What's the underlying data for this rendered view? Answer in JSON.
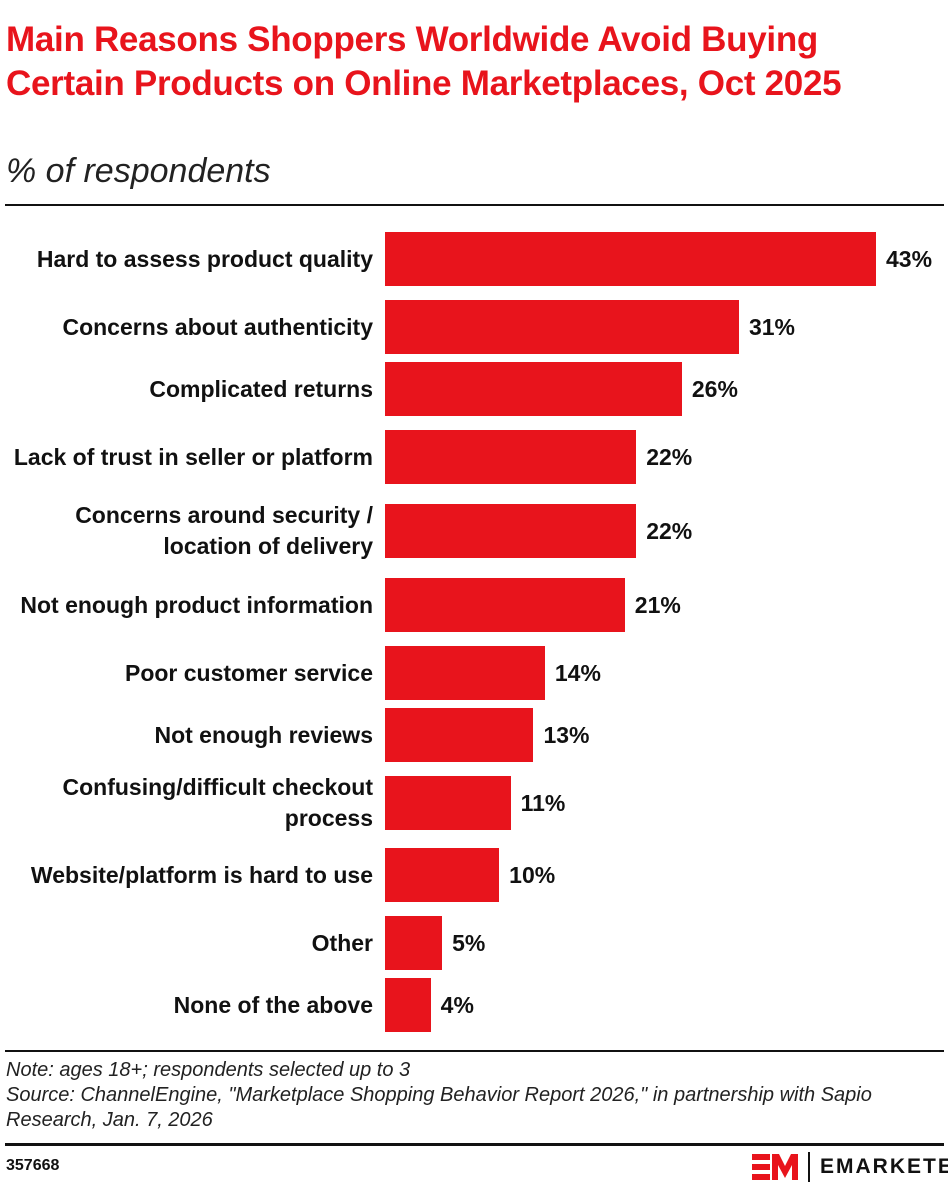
{
  "title": "Main Reasons Shoppers Worldwide Avoid Buying Certain Products on Online Marketplaces, Oct 2025",
  "subtitle": "% of respondents",
  "chart_data": {
    "type": "bar",
    "orientation": "horizontal",
    "categories": [
      "Hard to assess product quality",
      "Concerns about authenticity",
      "Complicated returns",
      "Lack of trust in seller or platform",
      "Concerns around security / location of delivery",
      "Not enough product information",
      "Poor customer service",
      "Not enough reviews",
      "Confusing/difficult checkout process",
      "Website/platform is hard to use",
      "Other",
      "None of the above"
    ],
    "values": [
      43,
      31,
      26,
      22,
      22,
      21,
      14,
      13,
      11,
      10,
      5,
      4
    ],
    "value_labels": [
      "43%",
      "31%",
      "26%",
      "22%",
      "22%",
      "21%",
      "14%",
      "13%",
      "11%",
      "10%",
      "5%",
      "4%"
    ],
    "xlim": [
      0,
      43
    ],
    "grid": false,
    "bar_color": "#e8141c"
  },
  "note": "Note: ages 18+; respondents selected up to 3",
  "source": "Source: ChannelEngine, \"Marketplace Shopping Behavior Report 2026,\" in partnership with Sapio Research, Jan. 7, 2026",
  "chart_id": "357668",
  "logo": {
    "mark": "EM",
    "word": "EMARKETER"
  }
}
